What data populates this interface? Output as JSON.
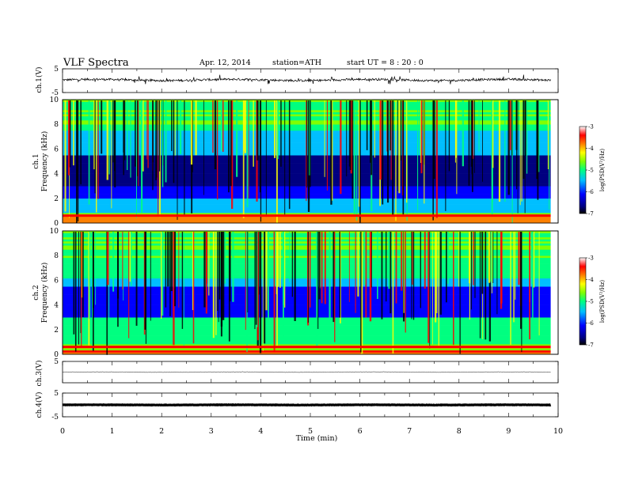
{
  "header": {
    "title": "VLF  Spectra",
    "date": "Apr. 12, 2014",
    "station": "station=ATH",
    "start": "start  UT  =   8  : 20 : 0"
  },
  "chart_data": [
    {
      "type": "line",
      "name": "ch1-waveform",
      "ylabel": "ch.1(V)",
      "ylim": [
        -5,
        5
      ],
      "yticks": [
        5,
        -5
      ],
      "xlim": [
        0,
        10
      ],
      "duration_min": 9.85,
      "baseline_v": 0.3
    },
    {
      "type": "heatmap",
      "name": "ch1-spectrogram",
      "ylabel_top": "ch.1",
      "ylabel": "Frequency  (kHz)",
      "ylim": [
        0,
        10
      ],
      "yticks": [
        0,
        2,
        4,
        6,
        8,
        10
      ],
      "xlim": [
        0,
        10
      ],
      "colorbar": {
        "label": "log(PSD(V²/Hz)",
        "range": [
          -7,
          -3
        ],
        "ticks": [
          -3,
          -4,
          -5,
          -6,
          -7
        ]
      }
    },
    {
      "type": "heatmap",
      "name": "ch2-spectrogram",
      "ylabel_top": "ch.2",
      "ylabel": "Frequency  (kHz)",
      "ylim": [
        0,
        10
      ],
      "yticks": [
        0,
        2,
        4,
        6,
        8,
        10
      ],
      "xlim": [
        0,
        10
      ],
      "colorbar": {
        "label": "log(PSD(V²/Hz)",
        "range": [
          -7,
          -3
        ],
        "ticks": [
          -3,
          -4,
          -5,
          -6,
          -7
        ]
      }
    },
    {
      "type": "line",
      "name": "ch3-waveform",
      "ylabel": "ch.3(V)",
      "ylim": [
        -5,
        5
      ],
      "yticks": [
        5
      ],
      "xlim": [
        0,
        10
      ],
      "baseline_v": 0.0
    },
    {
      "type": "line",
      "name": "ch4-waveform",
      "ylabel": "ch.4(V)",
      "ylim": [
        -5,
        5
      ],
      "yticks": [
        5,
        -5
      ],
      "xlim": [
        0,
        10
      ],
      "baseline_v": 0.0,
      "xlabel": "Time  (min)",
      "xticks": [
        0,
        1,
        2,
        3,
        4,
        5,
        6,
        7,
        8,
        9,
        10
      ]
    }
  ],
  "colors": {
    "axis": "#000000",
    "colormap": [
      "#000000",
      "#000080",
      "#0000ff",
      "#00bfff",
      "#00ff80",
      "#80ff00",
      "#ffff00",
      "#ff8000",
      "#ff0000",
      "#ffffff"
    ]
  }
}
